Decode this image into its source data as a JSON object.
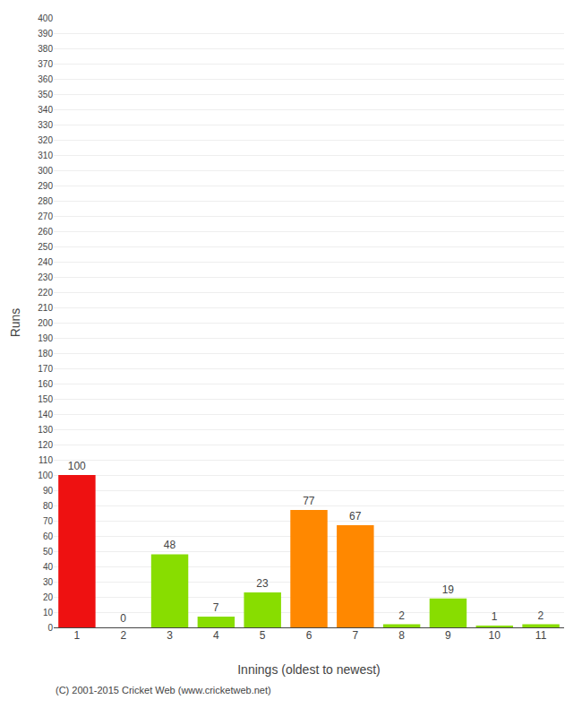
{
  "chart_data": {
    "type": "bar",
    "xlabel": "Innings (oldest to newest)",
    "ylabel": "Runs",
    "categories": [
      "1",
      "2",
      "3",
      "4",
      "5",
      "6",
      "7",
      "8",
      "9",
      "10",
      "11"
    ],
    "values": [
      100,
      0,
      48,
      7,
      23,
      77,
      67,
      2,
      19,
      1,
      2
    ],
    "colors": [
      "#ee1111",
      "#88dd00",
      "#88dd00",
      "#88dd00",
      "#88dd00",
      "#ff8800",
      "#ff8800",
      "#88dd00",
      "#88dd00",
      "#88dd00",
      "#88dd00"
    ],
    "ylim": [
      0,
      400
    ],
    "yticks": [
      0,
      10,
      20,
      30,
      40,
      50,
      60,
      70,
      80,
      90,
      100,
      110,
      120,
      130,
      140,
      150,
      160,
      170,
      180,
      190,
      200,
      210,
      220,
      230,
      240,
      250,
      260,
      270,
      280,
      290,
      300,
      310,
      320,
      330,
      340,
      350,
      360,
      370,
      380,
      390,
      400
    ],
    "grid": true,
    "data_labels": true,
    "annotations": [
      "(C) 2001-2015 Cricket Web (www.cricketweb.net)"
    ]
  }
}
